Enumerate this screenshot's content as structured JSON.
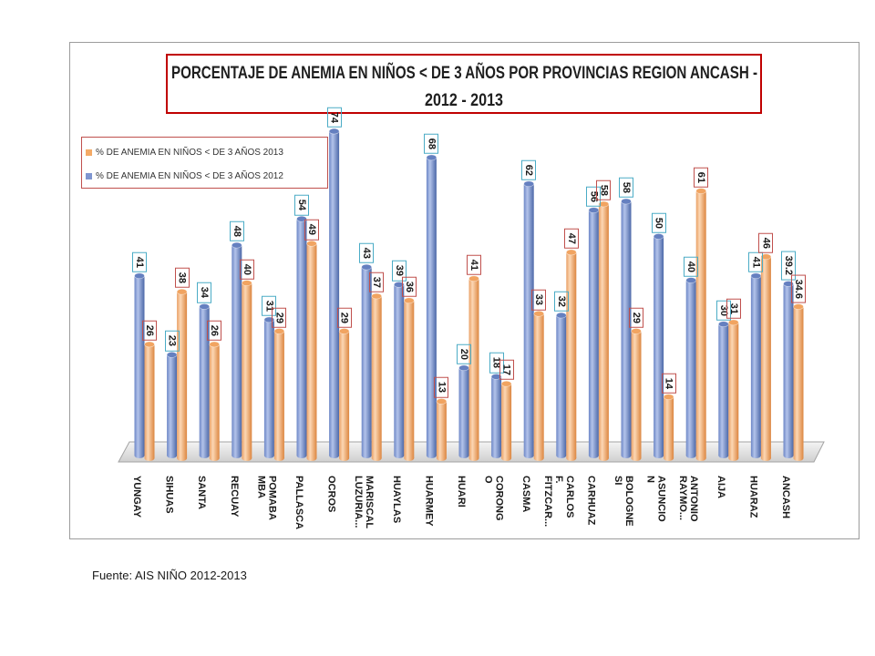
{
  "chart_data": {
    "type": "bar",
    "title": [
      "PORCENTAJE DE ANEMIA EN NIÑOS < DE 3 AÑOS POR PROVINCIAS REGION ANCASH -",
      "2012 - 2013"
    ],
    "categories": [
      "YUNGAY",
      "SIHUAS",
      "SANTA",
      "RECUAY",
      "POMABA\nMBA",
      "PALLASCA",
      "OCROS",
      "MARISCAL\nLUZURIA...",
      "HUAYLAS",
      "HUARMEY",
      "HUARI",
      "CORONG\nO",
      "CASMA",
      "CARLOS F.\nFITZCAR...",
      "CARHUAZ",
      "BOLOGNE\nSI",
      "ASUNCIO\nN",
      "ANTONIO\nRAYMO...",
      "AIJA",
      "HUARAZ",
      "ANCASH"
    ],
    "series": [
      {
        "name": "% DE ANEMIA EN NIÑOS < DE 3 AÑOS 2012",
        "color": "#7f96d0",
        "label_border": "#4bacc6",
        "values": [
          41,
          23,
          34,
          48,
          31,
          54,
          74,
          43,
          39,
          68,
          20,
          18,
          62,
          32,
          56,
          58,
          50,
          40,
          30,
          41,
          39.2
        ]
      },
      {
        "name": "% DE ANEMIA EN NIÑOS < DE 3 AÑOS 2013",
        "color": "#f4aa66",
        "label_border": "#c0504d",
        "values": [
          26,
          38,
          26,
          40,
          29,
          49,
          29,
          37,
          36,
          13,
          41,
          17,
          33,
          47,
          58,
          29,
          14,
          61,
          31,
          46,
          34.6
        ]
      }
    ],
    "legend_position": "top-left",
    "grid": false
  },
  "footer": {
    "source": "Fuente: AIS NIÑO 2012-2013"
  }
}
